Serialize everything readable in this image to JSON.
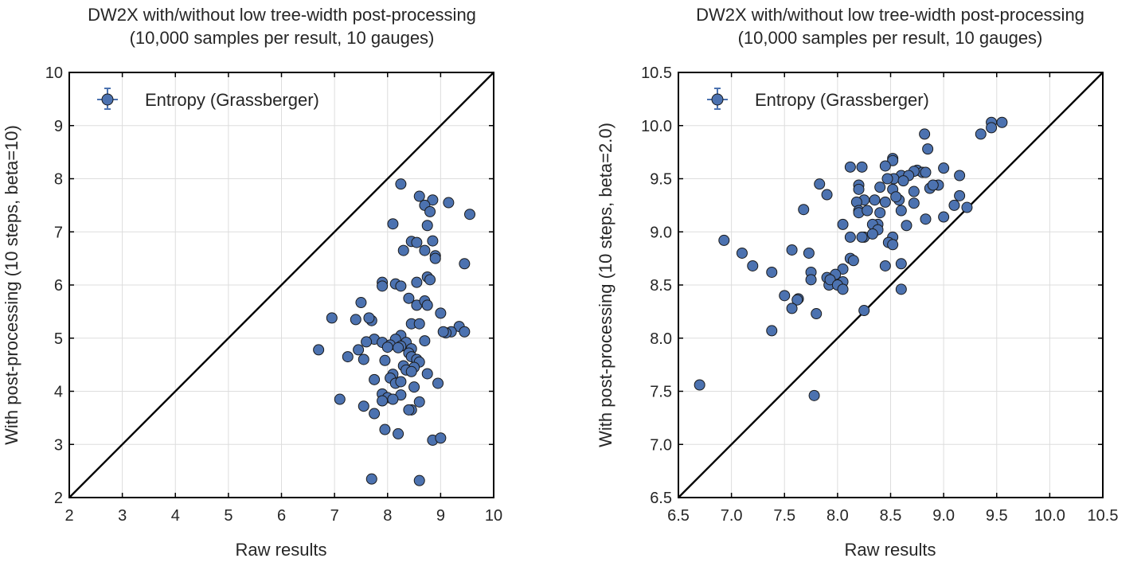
{
  "chart_data": [
    {
      "type": "scatter",
      "title": "DW2X with/without low tree-width post-processing",
      "subtitle": "(10,000 samples per result, 10 gauges)",
      "xlabel": "Raw results",
      "ylabel": "With post-processing (10 steps, beta=10)",
      "xlim": [
        2,
        10
      ],
      "ylim": [
        2,
        10
      ],
      "xticks": [
        "2",
        "3",
        "4",
        "5",
        "6",
        "7",
        "8",
        "9",
        "10"
      ],
      "yticks": [
        "2",
        "3",
        "4",
        "5",
        "6",
        "7",
        "8",
        "9",
        "10"
      ],
      "grid": true,
      "legend": {
        "placement": "top-left",
        "entries": [
          "Entropy (Grassberger)"
        ]
      },
      "reference_line": "y = x",
      "colors": {
        "points": "#4c72b0",
        "edge": "#1a1a1a",
        "line": "#000000"
      },
      "series": [
        {
          "name": "Entropy (Grassberger)",
          "x": [
            8.25,
            8.6,
            8.85,
            9.15,
            8.7,
            8.8,
            8.75,
            9.55,
            8.1,
            8.45,
            8.55,
            8.85,
            8.3,
            8.7,
            8.9,
            8.9,
            9.45,
            8.75,
            8.8,
            7.9,
            8.15,
            8.25,
            8.55,
            7.9,
            8.4,
            8.55,
            8.7,
            7.5,
            8.75,
            9.0,
            6.95,
            7.4,
            7.7,
            7.65,
            8.25,
            8.45,
            8.6,
            9.35,
            9.2,
            9.1,
            9.05,
            9.45,
            7.75,
            7.6,
            7.9,
            8.15,
            8.35,
            8.45,
            8.7,
            7.45,
            6.7,
            7.25,
            7.55,
            8.05,
            8.0,
            8.25,
            8.2,
            8.4,
            8.45,
            8.55,
            8.6,
            7.95,
            8.1,
            8.5,
            8.3,
            8.35,
            8.75,
            8.45,
            7.75,
            8.05,
            8.15,
            8.25,
            8.95,
            7.9,
            8.5,
            8.0,
            8.25,
            7.1,
            7.55,
            7.9,
            8.1,
            8.45,
            8.6,
            8.4,
            7.75,
            7.95,
            8.2,
            8.85,
            9.0,
            7.7,
            8.6
          ],
          "y": [
            7.9,
            7.67,
            7.6,
            7.55,
            7.5,
            7.38,
            7.12,
            7.33,
            7.15,
            6.82,
            6.8,
            6.83,
            6.65,
            6.65,
            6.55,
            6.5,
            6.4,
            6.15,
            6.1,
            6.05,
            6.02,
            5.98,
            6.05,
            5.98,
            5.75,
            5.62,
            5.7,
            5.67,
            5.62,
            5.47,
            5.38,
            5.35,
            5.33,
            5.38,
            5.05,
            5.27,
            5.27,
            5.22,
            5.12,
            5.1,
            5.12,
            5.12,
            4.98,
            4.93,
            4.92,
            4.98,
            4.92,
            4.8,
            4.95,
            4.78,
            4.78,
            4.65,
            4.6,
            4.87,
            4.83,
            4.85,
            4.82,
            4.72,
            4.65,
            4.6,
            4.55,
            4.58,
            4.32,
            4.45,
            4.48,
            4.4,
            4.33,
            4.37,
            4.22,
            4.25,
            4.15,
            4.18,
            4.15,
            3.95,
            4.08,
            3.88,
            3.93,
            3.85,
            3.72,
            3.82,
            3.85,
            3.65,
            3.8,
            3.65,
            3.58,
            3.28,
            3.2,
            3.08,
            3.12,
            2.35,
            2.32
          ]
        }
      ]
    },
    {
      "type": "scatter",
      "title": "DW2X with/without low tree-width post-processing",
      "subtitle": "(10,000 samples per result, 10 gauges)",
      "xlabel": "Raw results",
      "ylabel": "With post-processing (10 steps, beta=2.0)",
      "xlim": [
        6.5,
        10.5
      ],
      "ylim": [
        6.5,
        10.5
      ],
      "xticks": [
        "6.5",
        "7.0",
        "7.5",
        "8.0",
        "8.5",
        "9.0",
        "9.5",
        "10.0",
        "10.5"
      ],
      "yticks": [
        "6.5",
        "7.0",
        "7.5",
        "8.0",
        "8.5",
        "9.0",
        "9.5",
        "10.0",
        "10.5"
      ],
      "grid": true,
      "legend": {
        "placement": "top-left",
        "entries": [
          "Entropy (Grassberger)"
        ]
      },
      "reference_line": "y = x",
      "colors": {
        "points": "#4c72b0",
        "edge": "#1a1a1a",
        "line": "#000000"
      },
      "series": [
        {
          "name": "Entropy (Grassberger)",
          "x": [
            9.45,
            9.55,
            9.45,
            9.35,
            8.82,
            8.85,
            8.52,
            8.52,
            8.45,
            8.23,
            8.12,
            8.6,
            8.75,
            8.8,
            8.83,
            8.72,
            9.0,
            8.67,
            8.53,
            8.62,
            8.47,
            9.15,
            7.83,
            8.2,
            8.2,
            8.4,
            8.52,
            8.35,
            8.25,
            8.72,
            8.87,
            8.95,
            8.9,
            7.9,
            8.18,
            8.45,
            8.58,
            8.55,
            8.2,
            8.2,
            8.4,
            8.28,
            8.72,
            8.6,
            9.22,
            9.15,
            9.1,
            9.0,
            8.38,
            7.68,
            8.05,
            8.33,
            8.38,
            8.65,
            8.83,
            8.12,
            8.25,
            8.52,
            8.48,
            8.33,
            8.23,
            6.93,
            7.1,
            7.57,
            7.73,
            8.12,
            8.15,
            8.52,
            7.2,
            7.38,
            8.45,
            8.6,
            7.75,
            8.05,
            7.98,
            7.9,
            7.75,
            7.92,
            7.93,
            8.05,
            8.0,
            8.05,
            8.6,
            7.5,
            7.63,
            7.62,
            7.57,
            7.8,
            8.25,
            7.38,
            6.7,
            7.78
          ],
          "y": [
            10.03,
            10.03,
            9.98,
            9.92,
            9.92,
            9.78,
            9.69,
            9.67,
            9.62,
            9.61,
            9.61,
            9.53,
            9.58,
            9.56,
            9.56,
            9.57,
            9.6,
            9.53,
            9.5,
            9.48,
            9.5,
            9.53,
            9.45,
            9.44,
            9.4,
            9.42,
            9.4,
            9.3,
            9.3,
            9.38,
            9.41,
            9.44,
            9.44,
            9.35,
            9.28,
            9.28,
            9.3,
            9.33,
            9.2,
            9.18,
            9.18,
            9.2,
            9.27,
            9.2,
            9.23,
            9.34,
            9.25,
            9.14,
            9.07,
            9.21,
            9.07,
            9.07,
            9.02,
            9.06,
            9.12,
            8.95,
            8.95,
            8.95,
            8.9,
            8.98,
            8.95,
            8.92,
            8.8,
            8.83,
            8.8,
            8.75,
            8.73,
            8.88,
            8.68,
            8.62,
            8.68,
            8.7,
            8.62,
            8.65,
            8.6,
            8.57,
            8.55,
            8.5,
            8.55,
            8.53,
            8.5,
            8.46,
            8.46,
            8.4,
            8.37,
            8.36,
            8.28,
            8.23,
            8.26,
            8.07,
            7.56,
            7.46
          ]
        }
      ]
    }
  ]
}
